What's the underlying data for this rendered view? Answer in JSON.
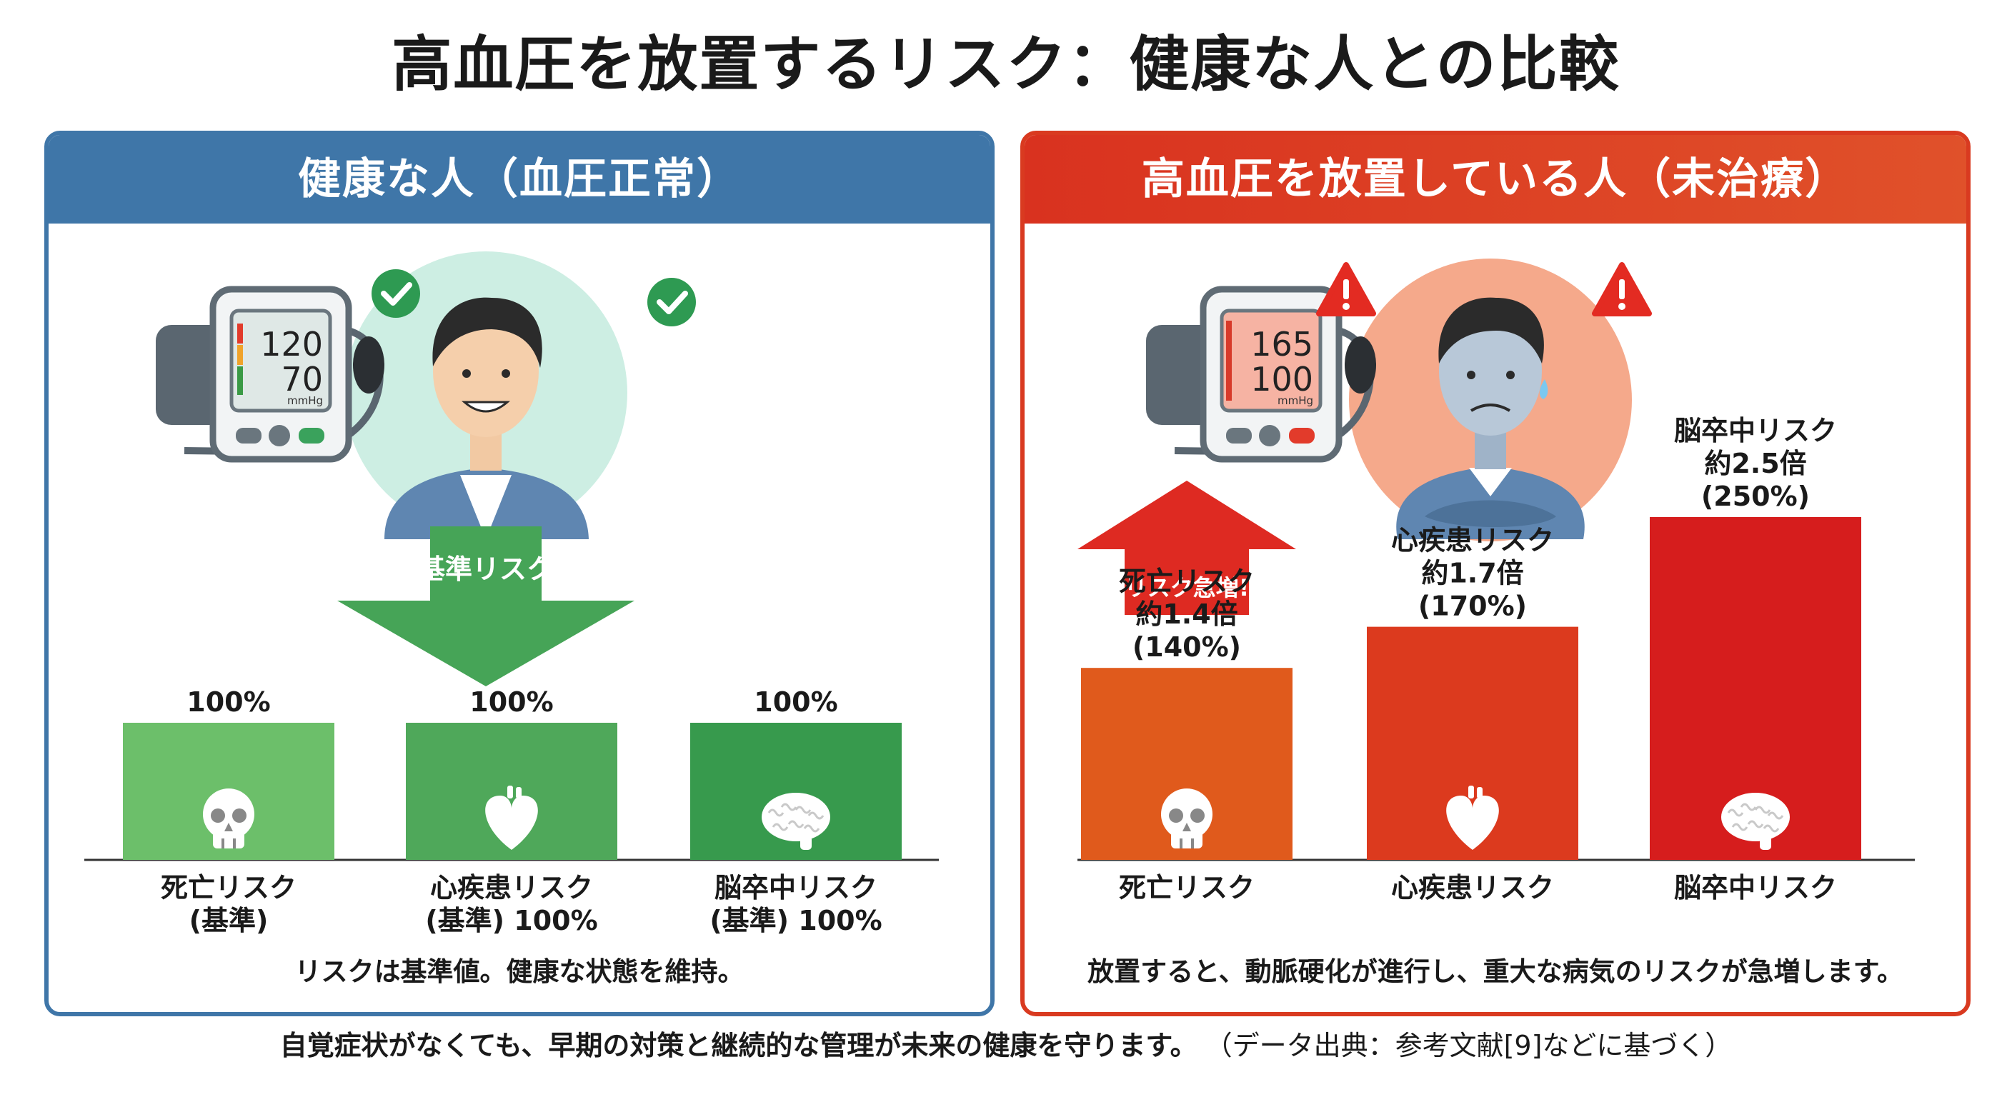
{
  "title": "高血圧を放置するリスク：健康な人との比較",
  "left_panel": {
    "heading": "健康な人（血圧正常）",
    "monitor": {
      "systolic": "120",
      "diastolic": "70",
      "unit": "mmHg"
    },
    "arrow_label": "基準リスク",
    "caption": "リスクは基準値。健康な状態を維持。"
  },
  "right_panel": {
    "heading": "高血圧を放置している人（未治療）",
    "monitor": {
      "systolic": "165",
      "diastolic": "100",
      "unit": "mmHg"
    },
    "arrow_label": "リスク急増!",
    "caption": "放置すると、動脈硬化が進行し、重大な病気のリスクが急増します。"
  },
  "footnote": {
    "main": "自覚症状がなくても、早期の対策と継続的な管理が未来の健康を守ります。",
    "source": "（データ出典：参考文献[9]などに基づく）"
  },
  "chart_data": [
    {
      "type": "bar",
      "categories": [
        "死亡リスク",
        "心疾患リスク",
        "脳卒中リスク"
      ],
      "values": [
        100,
        100,
        100
      ],
      "value_labels": [
        "100%",
        "100%",
        "100%"
      ],
      "category_labels": [
        [
          "死亡リスク",
          "(基準)"
        ],
        [
          "心疾患リスク",
          "(基準) 100%"
        ],
        [
          "脳卒中リスク",
          "(基準) 100%"
        ]
      ],
      "icons": [
        "skull-icon",
        "heart-icon",
        "brain-icon"
      ],
      "colors": [
        "#6cbf6a",
        "#4fa85a",
        "#379a4d"
      ],
      "ylim": [
        0,
        250
      ]
    },
    {
      "type": "bar",
      "categories": [
        "死亡リスク",
        "心疾患リスク",
        "脳卒中リスク"
      ],
      "values": [
        140,
        170,
        250
      ],
      "value_labels": [
        [
          "死亡リスク",
          "約1.4倍",
          "(140%)"
        ],
        [
          "心疾患リスク",
          "約1.7倍",
          "(170%)"
        ],
        [
          "脳卒中リスク",
          "約2.5倍",
          "(250%)"
        ]
      ],
      "category_labels": [
        [
          "死亡リスク"
        ],
        [
          "心疾患リスク"
        ],
        [
          "脳卒中リスク"
        ]
      ],
      "icons": [
        "skull-icon",
        "heart-icon",
        "brain-icon"
      ],
      "colors": [
        "#e05a1c",
        "#dc3a1e",
        "#d61d1d"
      ],
      "ylim": [
        0,
        250
      ]
    }
  ]
}
